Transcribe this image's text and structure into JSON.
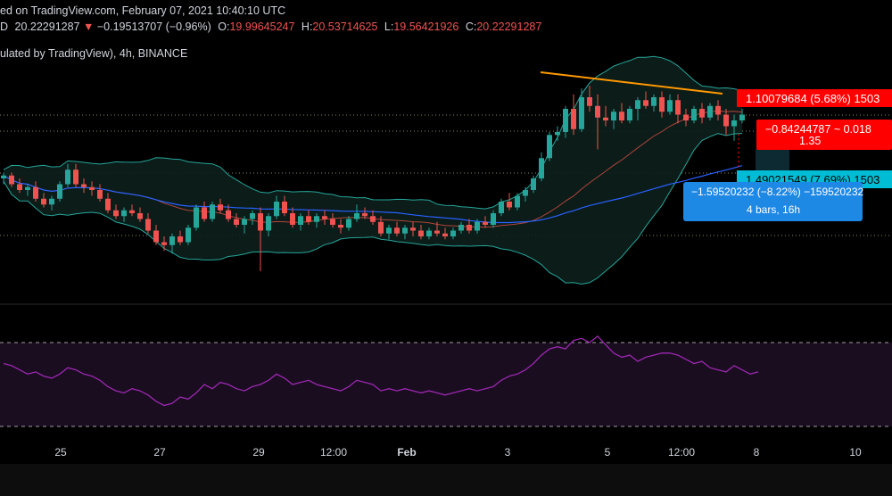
{
  "header": {
    "published": "ed on TradingView.com, February 07, 2021 10:40:10 UTC",
    "last": "20.22291287",
    "change": "−0.19513707 (−0.96%)",
    "o_label": "O:",
    "o": "19.99645247",
    "h_label": "H:",
    "h": "20.53714625",
    "l_label": "L:",
    "l": "19.56421926",
    "c_label": "C:",
    "c": "20.22291287",
    "symbol_line": "ulated by TradingView), 4h, BINANCE",
    "prefix": "D"
  },
  "price_labels": {
    "upper": "1.10079684 (5.68%) 1503",
    "lower": "1.49021549 (7.69%) 1503",
    "red_box_line1": "−0.84244787 ~ 0.018",
    "red_box_line2": "1.35",
    "blue_box_line1": "−1.59520232 (−8.22%) −159520232",
    "blue_box_line2": "4 bars, 16h"
  },
  "x_axis": {
    "ticks": [
      "25",
      "27",
      "29",
      "12:00",
      "Feb",
      "3",
      "5",
      "12:00",
      "8",
      "10"
    ]
  },
  "colors": {
    "up": "#26a69a",
    "down": "#ef5350",
    "bb": "#26a69a",
    "ma_red": "#b2453c",
    "ma_blue": "#2962ff",
    "trend": "#ff9800",
    "rsi": "#9c27b0",
    "label_red": "#ff0000",
    "label_teal": "#00bcd4",
    "label_blue": "#1e88e5"
  },
  "chart_data": {
    "type": "candlestick",
    "timeframe": "4h",
    "exchange": "BINANCE",
    "candles": [
      {
        "o": 20.5,
        "h": 20.7,
        "l": 20.3,
        "c": 20.6
      },
      {
        "o": 20.6,
        "h": 20.7,
        "l": 20.2,
        "c": 20.3
      },
      {
        "o": 20.3,
        "h": 20.5,
        "l": 20.0,
        "c": 20.1
      },
      {
        "o": 20.1,
        "h": 20.3,
        "l": 19.9,
        "c": 20.2
      },
      {
        "o": 20.2,
        "h": 20.4,
        "l": 19.7,
        "c": 19.8
      },
      {
        "o": 19.8,
        "h": 20.0,
        "l": 19.5,
        "c": 19.6
      },
      {
        "o": 19.6,
        "h": 19.9,
        "l": 19.4,
        "c": 19.8
      },
      {
        "o": 19.8,
        "h": 20.4,
        "l": 19.7,
        "c": 20.3
      },
      {
        "o": 20.3,
        "h": 21.0,
        "l": 20.2,
        "c": 20.8
      },
      {
        "o": 20.8,
        "h": 21.0,
        "l": 20.2,
        "c": 20.3
      },
      {
        "o": 20.3,
        "h": 20.5,
        "l": 20.0,
        "c": 20.2
      },
      {
        "o": 20.2,
        "h": 20.4,
        "l": 19.9,
        "c": 20.1
      },
      {
        "o": 20.1,
        "h": 20.3,
        "l": 19.7,
        "c": 19.8
      },
      {
        "o": 19.8,
        "h": 20.0,
        "l": 19.3,
        "c": 19.4
      },
      {
        "o": 19.4,
        "h": 19.6,
        "l": 19.1,
        "c": 19.2
      },
      {
        "o": 19.2,
        "h": 19.5,
        "l": 19.0,
        "c": 19.4
      },
      {
        "o": 19.4,
        "h": 19.6,
        "l": 19.2,
        "c": 19.3
      },
      {
        "o": 19.3,
        "h": 19.5,
        "l": 19.0,
        "c": 19.1
      },
      {
        "o": 19.1,
        "h": 19.3,
        "l": 18.6,
        "c": 18.7
      },
      {
        "o": 18.7,
        "h": 18.9,
        "l": 18.2,
        "c": 18.3
      },
      {
        "o": 18.3,
        "h": 18.5,
        "l": 18.0,
        "c": 18.2
      },
      {
        "o": 18.2,
        "h": 18.6,
        "l": 17.9,
        "c": 18.5
      },
      {
        "o": 18.5,
        "h": 18.7,
        "l": 18.2,
        "c": 18.3
      },
      {
        "o": 18.3,
        "h": 18.9,
        "l": 18.2,
        "c": 18.8
      },
      {
        "o": 18.8,
        "h": 19.6,
        "l": 18.7,
        "c": 19.5
      },
      {
        "o": 19.5,
        "h": 19.7,
        "l": 19.0,
        "c": 19.1
      },
      {
        "o": 19.1,
        "h": 19.7,
        "l": 19.0,
        "c": 19.6
      },
      {
        "o": 19.6,
        "h": 19.8,
        "l": 19.3,
        "c": 19.4
      },
      {
        "o": 19.4,
        "h": 19.6,
        "l": 19.0,
        "c": 19.1
      },
      {
        "o": 19.1,
        "h": 19.3,
        "l": 18.8,
        "c": 18.9
      },
      {
        "o": 18.9,
        "h": 19.2,
        "l": 18.6,
        "c": 19.1
      },
      {
        "o": 19.1,
        "h": 19.4,
        "l": 18.9,
        "c": 19.3
      },
      {
        "o": 19.3,
        "h": 19.5,
        "l": 17.3,
        "c": 18.7
      },
      {
        "o": 18.7,
        "h": 19.3,
        "l": 18.5,
        "c": 19.2
      },
      {
        "o": 19.2,
        "h": 19.9,
        "l": 19.1,
        "c": 19.7
      },
      {
        "o": 19.7,
        "h": 19.9,
        "l": 19.2,
        "c": 19.3
      },
      {
        "o": 19.3,
        "h": 19.5,
        "l": 18.8,
        "c": 18.9
      },
      {
        "o": 18.9,
        "h": 19.3,
        "l": 18.7,
        "c": 19.2
      },
      {
        "o": 19.2,
        "h": 19.4,
        "l": 18.9,
        "c": 19.0
      },
      {
        "o": 19.0,
        "h": 19.3,
        "l": 18.8,
        "c": 19.2
      },
      {
        "o": 19.2,
        "h": 19.4,
        "l": 18.9,
        "c": 19.1
      },
      {
        "o": 19.1,
        "h": 19.3,
        "l": 18.8,
        "c": 18.9
      },
      {
        "o": 18.9,
        "h": 19.1,
        "l": 18.6,
        "c": 18.8
      },
      {
        "o": 18.8,
        "h": 19.2,
        "l": 18.7,
        "c": 19.1
      },
      {
        "o": 19.1,
        "h": 19.6,
        "l": 19.0,
        "c": 19.3
      },
      {
        "o": 19.3,
        "h": 19.5,
        "l": 19.1,
        "c": 19.2
      },
      {
        "o": 19.2,
        "h": 19.4,
        "l": 18.9,
        "c": 19.0
      },
      {
        "o": 19.0,
        "h": 19.2,
        "l": 18.5,
        "c": 18.6
      },
      {
        "o": 18.6,
        "h": 18.9,
        "l": 18.4,
        "c": 18.8
      },
      {
        "o": 18.8,
        "h": 19.0,
        "l": 18.5,
        "c": 18.6
      },
      {
        "o": 18.6,
        "h": 18.9,
        "l": 18.4,
        "c": 18.8
      },
      {
        "o": 18.8,
        "h": 19.0,
        "l": 18.5,
        "c": 18.7
      },
      {
        "o": 18.7,
        "h": 18.9,
        "l": 18.4,
        "c": 18.5
      },
      {
        "o": 18.5,
        "h": 18.8,
        "l": 18.4,
        "c": 18.7
      },
      {
        "o": 18.7,
        "h": 19.0,
        "l": 18.5,
        "c": 18.6
      },
      {
        "o": 18.6,
        "h": 18.8,
        "l": 18.4,
        "c": 18.5
      },
      {
        "o": 18.5,
        "h": 18.8,
        "l": 18.4,
        "c": 18.7
      },
      {
        "o": 18.7,
        "h": 19.0,
        "l": 18.6,
        "c": 18.9
      },
      {
        "o": 18.9,
        "h": 19.1,
        "l": 18.6,
        "c": 18.7
      },
      {
        "o": 18.7,
        "h": 19.1,
        "l": 18.6,
        "c": 19.0
      },
      {
        "o": 19.0,
        "h": 19.2,
        "l": 18.8,
        "c": 18.9
      },
      {
        "o": 18.9,
        "h": 19.4,
        "l": 18.8,
        "c": 19.3
      },
      {
        "o": 19.3,
        "h": 19.8,
        "l": 19.2,
        "c": 19.7
      },
      {
        "o": 19.7,
        "h": 20.0,
        "l": 19.4,
        "c": 19.5
      },
      {
        "o": 19.5,
        "h": 20.0,
        "l": 19.4,
        "c": 19.9
      },
      {
        "o": 19.9,
        "h": 20.2,
        "l": 19.7,
        "c": 20.1
      },
      {
        "o": 20.1,
        "h": 20.6,
        "l": 20.0,
        "c": 20.5
      },
      {
        "o": 20.5,
        "h": 21.4,
        "l": 20.4,
        "c": 21.2
      },
      {
        "o": 21.2,
        "h": 22.1,
        "l": 21.1,
        "c": 22.0
      },
      {
        "o": 22.0,
        "h": 22.3,
        "l": 21.8,
        "c": 22.1
      },
      {
        "o": 22.1,
        "h": 23.0,
        "l": 21.9,
        "c": 22.9
      },
      {
        "o": 22.9,
        "h": 23.4,
        "l": 22.0,
        "c": 22.2
      },
      {
        "o": 22.2,
        "h": 23.6,
        "l": 22.1,
        "c": 23.3
      },
      {
        "o": 23.3,
        "h": 23.7,
        "l": 22.8,
        "c": 23.0
      },
      {
        "o": 23.0,
        "h": 23.4,
        "l": 21.5,
        "c": 22.6
      },
      {
        "o": 22.6,
        "h": 23.0,
        "l": 22.3,
        "c": 22.5
      },
      {
        "o": 22.5,
        "h": 22.9,
        "l": 22.2,
        "c": 22.8
      },
      {
        "o": 22.8,
        "h": 23.1,
        "l": 22.4,
        "c": 22.5
      },
      {
        "o": 22.5,
        "h": 23.0,
        "l": 22.4,
        "c": 22.9
      },
      {
        "o": 22.9,
        "h": 23.3,
        "l": 22.5,
        "c": 23.2
      },
      {
        "o": 23.2,
        "h": 23.5,
        "l": 22.9,
        "c": 23.0
      },
      {
        "o": 23.0,
        "h": 23.4,
        "l": 22.8,
        "c": 23.3
      },
      {
        "o": 23.3,
        "h": 23.5,
        "l": 22.6,
        "c": 22.8
      },
      {
        "o": 22.8,
        "h": 23.4,
        "l": 22.7,
        "c": 23.2
      },
      {
        "o": 23.2,
        "h": 23.4,
        "l": 22.4,
        "c": 22.7
      },
      {
        "o": 22.7,
        "h": 22.9,
        "l": 22.3,
        "c": 22.5
      },
      {
        "o": 22.5,
        "h": 23.0,
        "l": 22.4,
        "c": 22.9
      },
      {
        "o": 22.9,
        "h": 23.1,
        "l": 22.4,
        "c": 22.6
      },
      {
        "o": 22.6,
        "h": 23.1,
        "l": 22.5,
        "c": 23.0
      },
      {
        "o": 23.0,
        "h": 23.2,
        "l": 22.5,
        "c": 22.7
      },
      {
        "o": 22.7,
        "h": 22.9,
        "l": 22.0,
        "c": 22.3
      },
      {
        "o": 22.3,
        "h": 22.7,
        "l": 21.8,
        "c": 22.5
      },
      {
        "o": 22.5,
        "h": 22.9,
        "l": 22.4,
        "c": 22.7
      }
    ],
    "rsi": [
      60,
      59,
      57,
      55,
      56,
      54,
      53,
      55,
      58,
      57,
      55,
      54,
      52,
      49,
      47,
      46,
      48,
      47,
      45,
      42,
      40,
      41,
      44,
      43,
      46,
      50,
      48,
      51,
      50,
      48,
      47,
      49,
      50,
      52,
      55,
      53,
      50,
      51,
      52,
      50,
      49,
      48,
      47,
      49,
      52,
      51,
      50,
      47,
      48,
      47,
      48,
      47,
      46,
      47,
      46,
      45,
      46,
      47,
      48,
      47,
      48,
      49,
      52,
      54,
      55,
      57,
      60,
      64,
      67,
      68,
      67,
      71,
      72,
      70,
      73,
      69,
      65,
      63,
      64,
      61,
      63,
      64,
      65,
      65,
      64,
      62,
      60,
      61,
      58,
      57,
      56,
      59,
      57,
      55,
      56
    ]
  }
}
